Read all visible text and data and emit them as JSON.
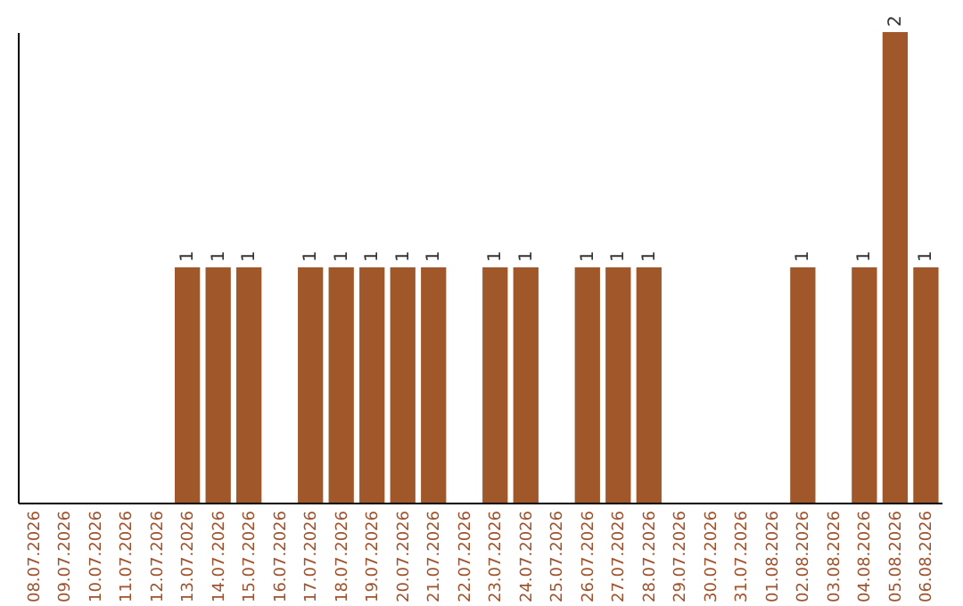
{
  "chart_data": {
    "type": "bar",
    "categories": [
      "08.07.2026",
      "09.07.2026",
      "10.07.2026",
      "11.07.2026",
      "12.07.2026",
      "13.07.2026",
      "14.07.2026",
      "15.07.2026",
      "16.07.2026",
      "17.07.2026",
      "18.07.2026",
      "19.07.2026",
      "20.07.2026",
      "21.07.2026",
      "22.07.2026",
      "23.07.2026",
      "24.07.2026",
      "25.07.2026",
      "26.07.2026",
      "27.07.2026",
      "28.07.2026",
      "29.07.2026",
      "30.07.2026",
      "31.07.2026",
      "01.08.2026",
      "02.08.2026",
      "03.08.2026",
      "04.08.2026",
      "05.08.2026",
      "06.08.2026"
    ],
    "values": [
      0,
      0,
      0,
      0,
      0,
      1,
      1,
      1,
      0,
      1,
      1,
      1,
      1,
      1,
      0,
      1,
      1,
      0,
      1,
      1,
      1,
      0,
      0,
      0,
      0,
      1,
      0,
      1,
      2,
      1
    ],
    "value_labels": [
      null,
      null,
      null,
      null,
      null,
      "1",
      "1",
      "1",
      null,
      "1",
      "1",
      "1",
      "1",
      "1",
      null,
      "1",
      "1",
      null,
      "1",
      "1",
      "1",
      null,
      null,
      null,
      null,
      "1",
      null,
      "1",
      "2",
      "1"
    ],
    "color": "#a0582a"
  }
}
